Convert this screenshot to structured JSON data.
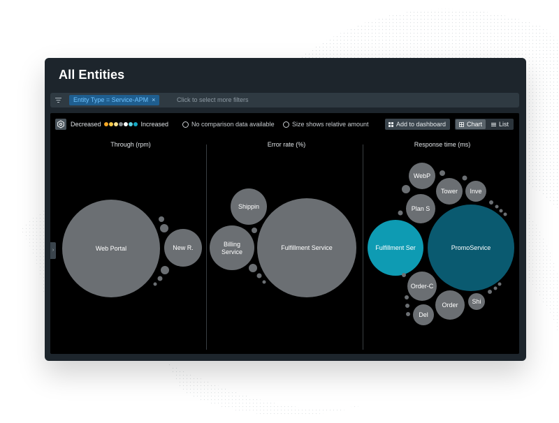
{
  "window": {
    "title": "All Entities"
  },
  "filter": {
    "chip_label": "Entity Type = Service-APM",
    "chip_close": "×",
    "placeholder": "Click to select more filters"
  },
  "legend": {
    "decreased": "Decreased",
    "increased": "Increased",
    "no_comparison": "No comparison data available",
    "size_hint": "Size shows relative amount",
    "dot_colors": [
      "#f5a623",
      "#f7c948",
      "#f8e08e",
      "#8a8f93",
      "#ffffff",
      "#5fd0e2",
      "#14a8c4"
    ]
  },
  "toolbar": {
    "add_dashboard": "Add to dashboard",
    "chart": "Chart",
    "list": "List"
  },
  "columns": [
    {
      "title": "Through (rpm)",
      "bubbles": [
        {
          "label": "Web Portal",
          "color": "gray"
        },
        {
          "label": "New R.",
          "color": "gray"
        }
      ]
    },
    {
      "title": "Error rate (%)",
      "bubbles": [
        {
          "label": "Shippin",
          "color": "gray"
        },
        {
          "label": "Billing",
          "label2": "Service",
          "color": "gray"
        },
        {
          "label": "Fulfillment Service",
          "color": "gray"
        }
      ]
    },
    {
      "title": "Response time (ms)",
      "bubbles": [
        {
          "label": "WebP",
          "color": "gray"
        },
        {
          "label": "Tower",
          "color": "gray"
        },
        {
          "label": "Inve",
          "color": "gray"
        },
        {
          "label": "Plan S",
          "color": "gray"
        },
        {
          "label": "Fulfillment Ser",
          "color": "cyan"
        },
        {
          "label": "PromoService",
          "color": "teal"
        },
        {
          "label": "Order-C",
          "color": "gray"
        },
        {
          "label": "Order",
          "color": "gray"
        },
        {
          "label": "Shi",
          "color": "gray"
        },
        {
          "label": "Del",
          "color": "gray"
        }
      ]
    }
  ],
  "colors": {
    "bubble_gray": "#6b6f73",
    "bubble_cyan": "#0e9bb3",
    "bubble_teal": "#0a5a70",
    "accent": "#1f5e8f"
  },
  "icons": {
    "filter": "filter-icon",
    "settings": "settings-icon",
    "dashboard": "dashboard-grid-icon",
    "chart": "chart-icon",
    "list": "list-icon",
    "collapse": "chevron-right-icon"
  }
}
